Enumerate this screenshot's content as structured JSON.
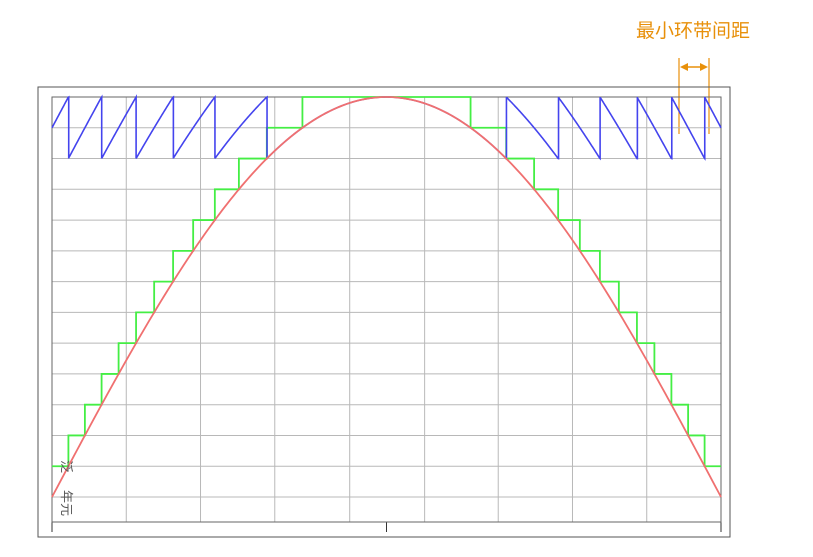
{
  "annotation": {
    "label": "最小环带间距",
    "color": "#e8900a"
  },
  "corner_text": {
    "line1": "泛",
    "line2": "年元"
  },
  "colors": {
    "sine": "#f07070",
    "staircase": "#44ee44",
    "sawtooth": "#4444ee",
    "grid": "#b8b8b8",
    "frame": "#333333"
  },
  "chart_data": {
    "type": "line",
    "title": "",
    "xlabel": "",
    "ylabel": "",
    "xlim": [
      0,
      1
    ],
    "ylim": [
      0,
      13
    ],
    "grid": true,
    "series": [
      {
        "kind": "sine",
        "amplitude": 13,
        "samples": 240
      },
      {
        "kind": "staircase",
        "levels": 13
      },
      {
        "kind": "sawtooth",
        "levels": 13,
        "min": 11,
        "max": 13
      }
    ]
  }
}
